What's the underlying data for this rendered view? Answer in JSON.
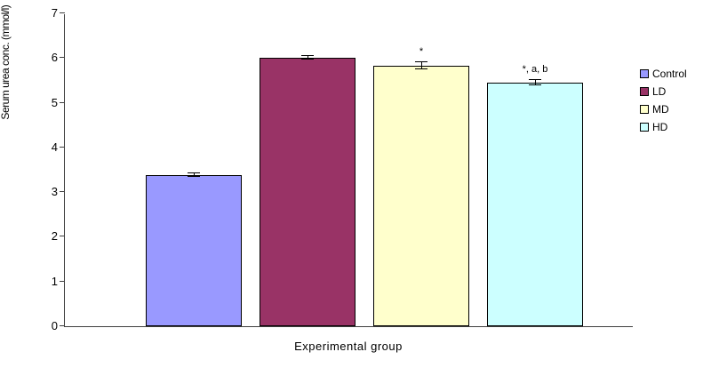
{
  "chart_data": {
    "type": "bar",
    "title": "",
    "xlabel": "Experimental group",
    "ylabel": "Serum urea conc. (mmol/l)",
    "ylim": [
      0,
      7
    ],
    "yticks": [
      0,
      1,
      2,
      3,
      4,
      5,
      6,
      7
    ],
    "categories": [
      "Control",
      "LD",
      "MD",
      "HD"
    ],
    "values": [
      3.38,
      6.0,
      5.82,
      5.45
    ],
    "errors": [
      0.04,
      0.04,
      0.08,
      0.06
    ],
    "annotations": [
      "",
      "",
      "*",
      "*, a, b"
    ],
    "colors": [
      "#9999ff",
      "#993366",
      "#ffffcc",
      "#ccffff"
    ],
    "bar_border_color": "#000000",
    "grid": false,
    "legend": {
      "position": "right",
      "entries": [
        "Control",
        "LD",
        "MD",
        "HD"
      ]
    }
  }
}
